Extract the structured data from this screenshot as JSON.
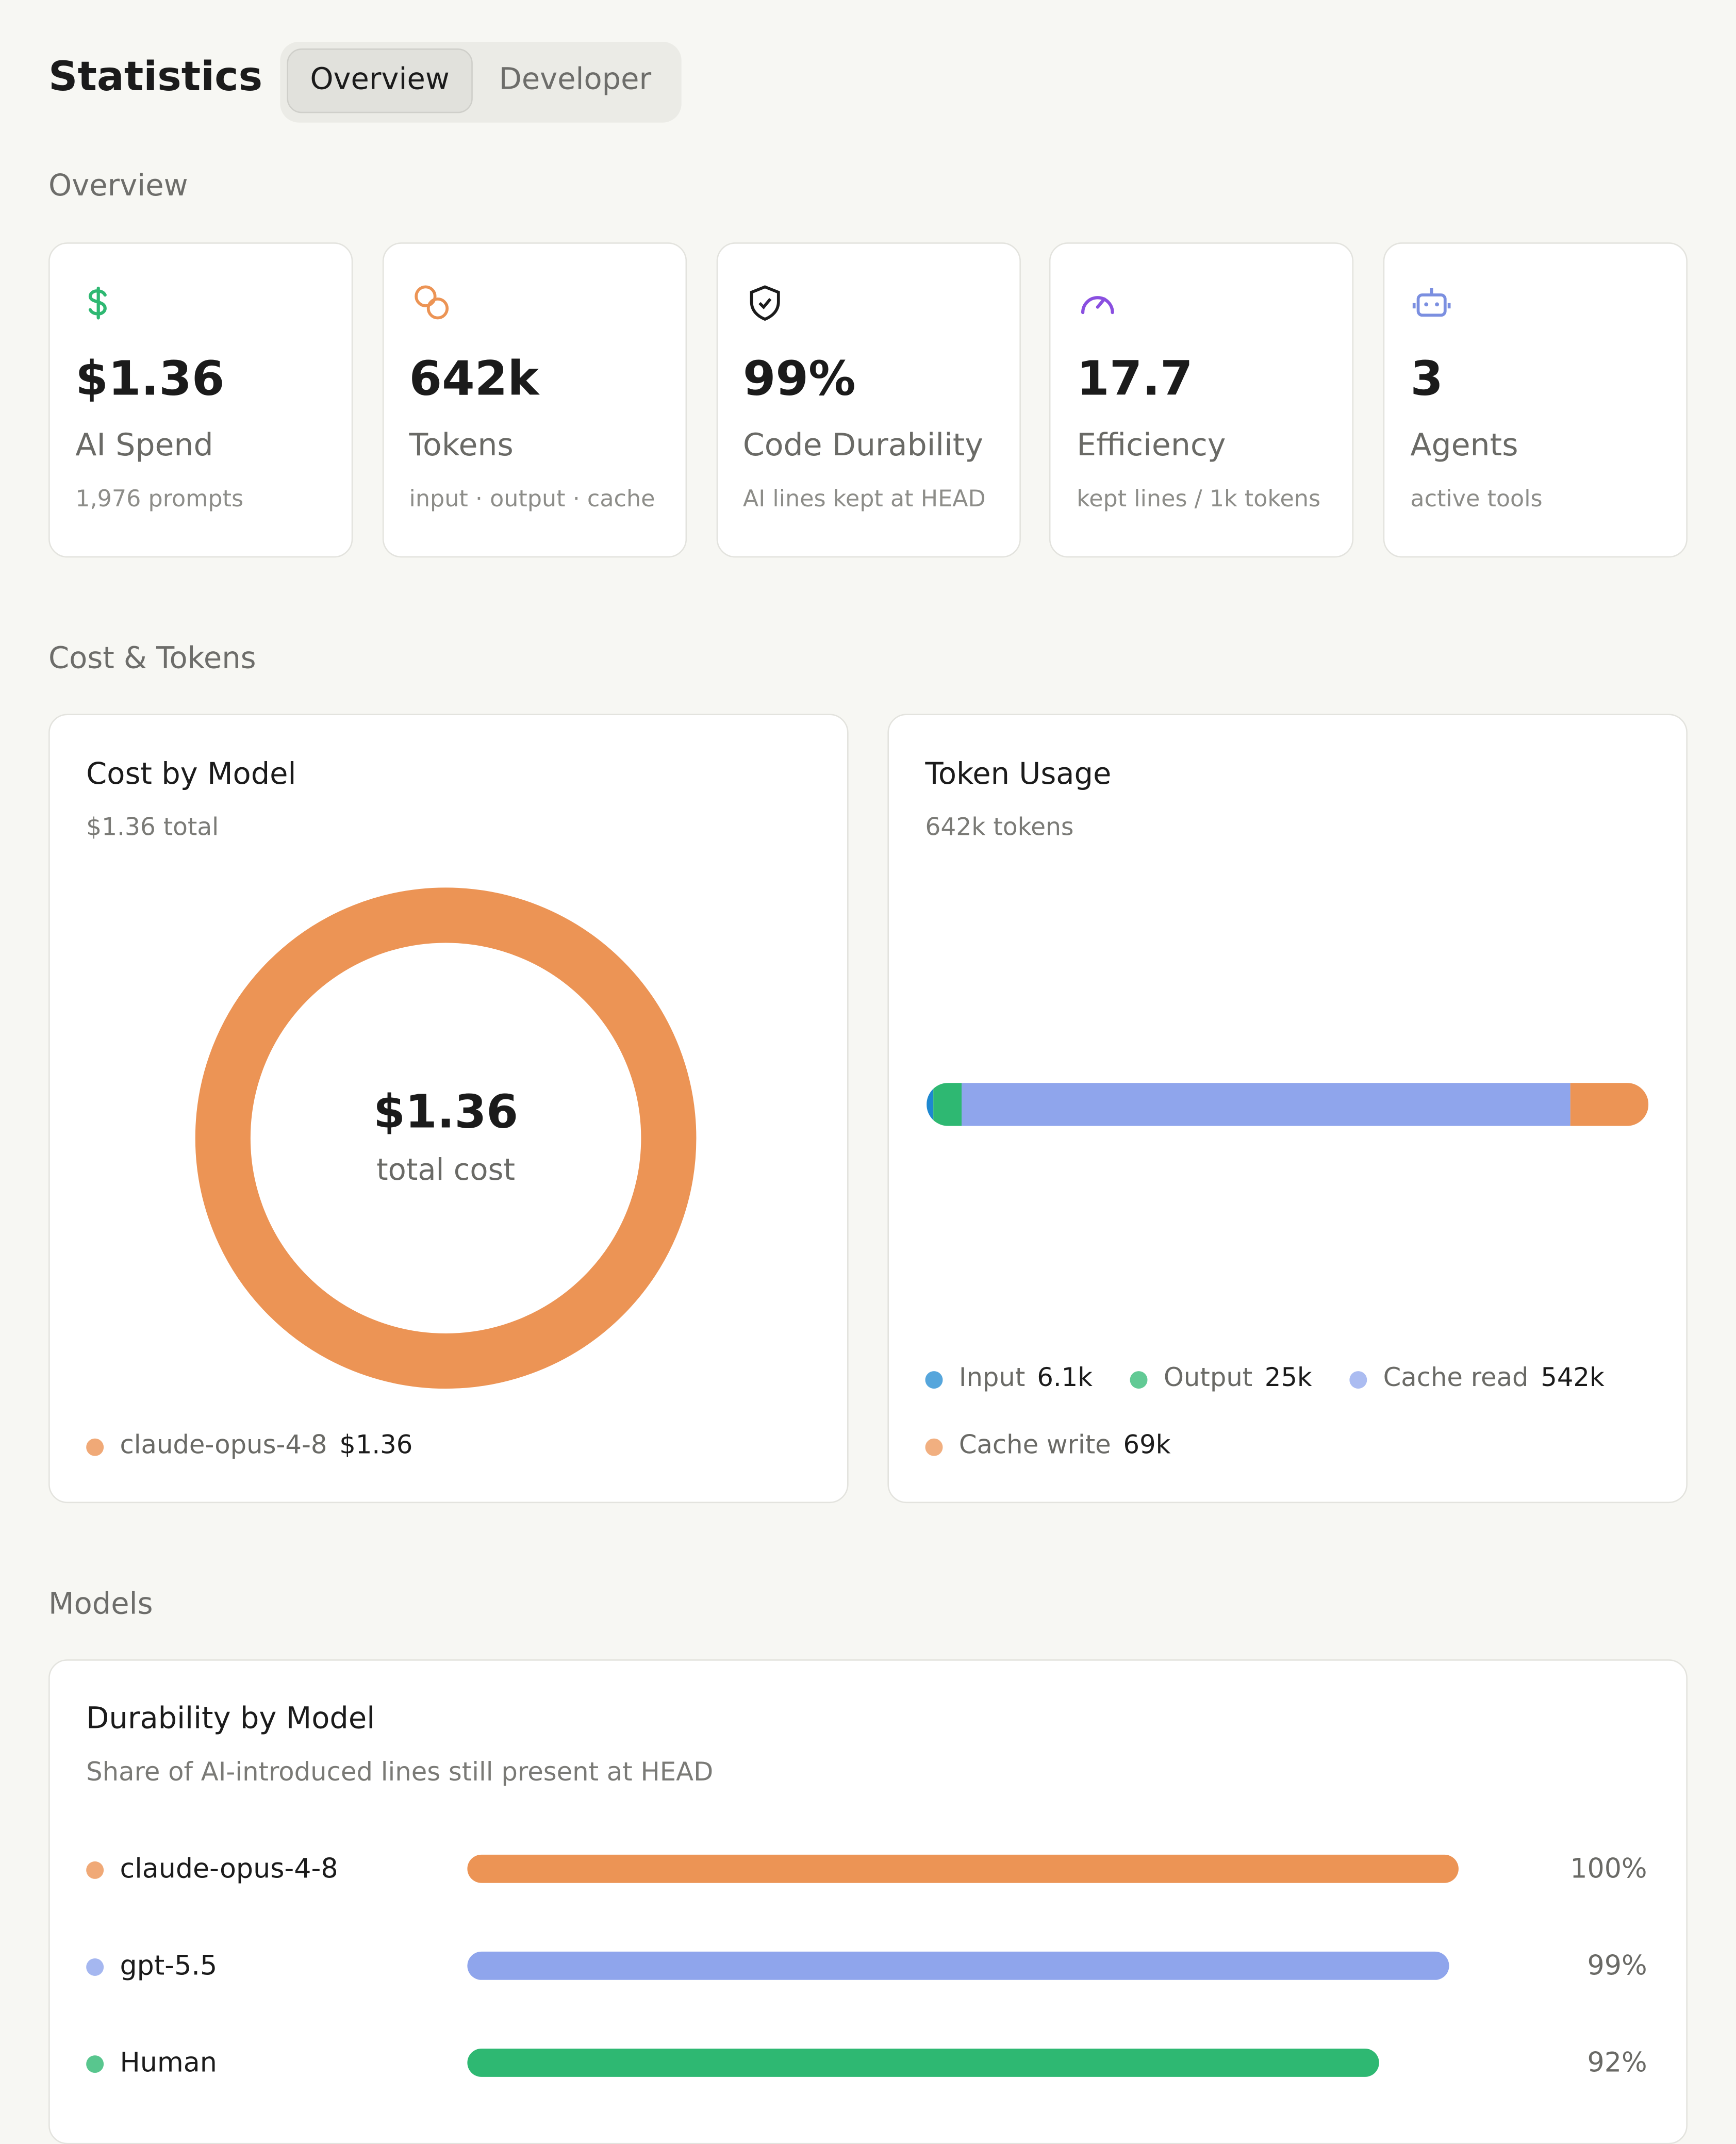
{
  "header": {
    "title": "Statistics",
    "tabs": [
      "Overview",
      "Developer"
    ]
  },
  "sections": [
    "Overview",
    "Cost & Tokens",
    "Models"
  ],
  "stats": [
    {
      "value": "$1.36",
      "label": "AI Spend",
      "sub": "1,976 prompts"
    },
    {
      "value": "642k",
      "label": "Tokens",
      "sub": "input · output · cache"
    },
    {
      "value": "99%",
      "label": "Code Durability",
      "sub": "AI lines kept at HEAD"
    },
    {
      "value": "17.7",
      "label": "Efficiency",
      "sub": "kept lines / 1k tokens"
    },
    {
      "value": "3",
      "label": "Agents",
      "sub": "active tools"
    }
  ],
  "cost_by_model": {
    "type": "pie",
    "title": "Cost by Model",
    "subtitle": "$1.36 total",
    "center_value": "$1.36",
    "center_label": "total cost",
    "series": [
      {
        "name": "claude-opus-4-8",
        "value": 1.36,
        "value_label": "$1.36",
        "color": "#ec9455"
      }
    ]
  },
  "token_usage": {
    "type": "bar",
    "title": "Token Usage",
    "subtitle": "642k tokens",
    "series": [
      {
        "name": "Input",
        "value": 6100,
        "value_label": "6.1k",
        "color": "#1e88d0"
      },
      {
        "name": "Output",
        "value": 25000,
        "value_label": "25k",
        "color": "#2eb872"
      },
      {
        "name": "Cache read",
        "value": 542000,
        "value_label": "542k",
        "color": "#8fa5ec"
      },
      {
        "name": "Cache write",
        "value": 69000,
        "value_label": "69k",
        "color": "#ec9455"
      }
    ]
  },
  "durability": {
    "type": "bar",
    "title": "Durability by Model",
    "subtitle": "Share of AI-introduced lines still present at HEAD",
    "xlim": [
      0,
      100
    ],
    "series": [
      {
        "name": "claude-opus-4-8",
        "value": 100,
        "value_label": "100%",
        "color": "#ec9455"
      },
      {
        "name": "gpt-5.5",
        "value": 99,
        "value_label": "99%",
        "color": "#8fa5ec"
      },
      {
        "name": "Human",
        "value": 92,
        "value_label": "92%",
        "color": "#2eb872"
      }
    ]
  }
}
